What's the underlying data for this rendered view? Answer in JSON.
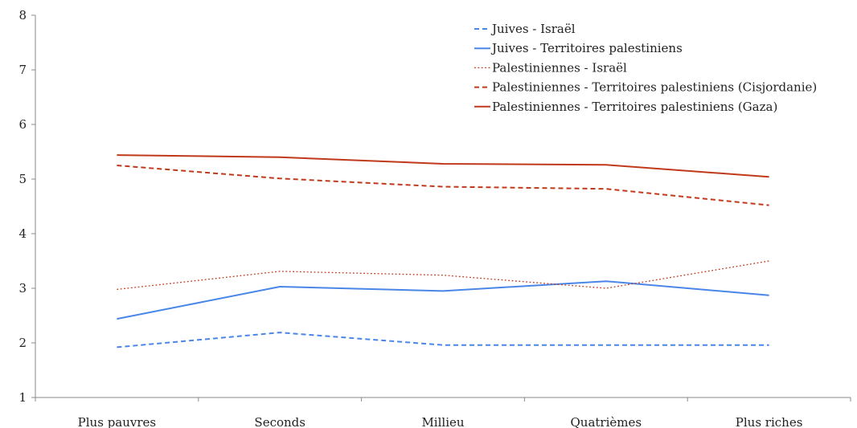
{
  "chart_data": {
    "type": "line",
    "categories": [
      "Plus pauvres",
      "Seconds",
      "Millieu",
      "Quatrièmes",
      "Plus riches"
    ],
    "ylim": [
      1,
      8
    ],
    "yticks": [
      1,
      2,
      3,
      4,
      5,
      6,
      7,
      8
    ],
    "legend_position": "top-right",
    "grid": false,
    "series": [
      {
        "name": "Juives - Israël",
        "values": [
          1.92,
          2.19,
          1.96,
          1.96,
          1.96
        ],
        "color": "#4a86e8",
        "style": "dashed"
      },
      {
        "name": "Juives - Territoires palestiniens",
        "values": [
          2.44,
          3.03,
          2.95,
          3.13,
          2.87
        ],
        "color": "#4a86e8",
        "style": "solid"
      },
      {
        "name": "Palestiniennes - Israël",
        "values": [
          2.98,
          3.31,
          3.24,
          3.0,
          3.5
        ],
        "color": "#c0391b",
        "style": "dotted"
      },
      {
        "name": "Palestiniennes - Territoires palestiniens (Cisjordanie)",
        "values": [
          5.25,
          5.01,
          4.86,
          4.82,
          4.52
        ],
        "color": "#c0391b",
        "style": "dashed"
      },
      {
        "name": "Palestiniennes - Territoires palestiniens (Gaza)",
        "values": [
          5.44,
          5.4,
          5.28,
          5.26,
          5.04
        ],
        "color": "#c0391b",
        "style": "solid"
      }
    ]
  }
}
